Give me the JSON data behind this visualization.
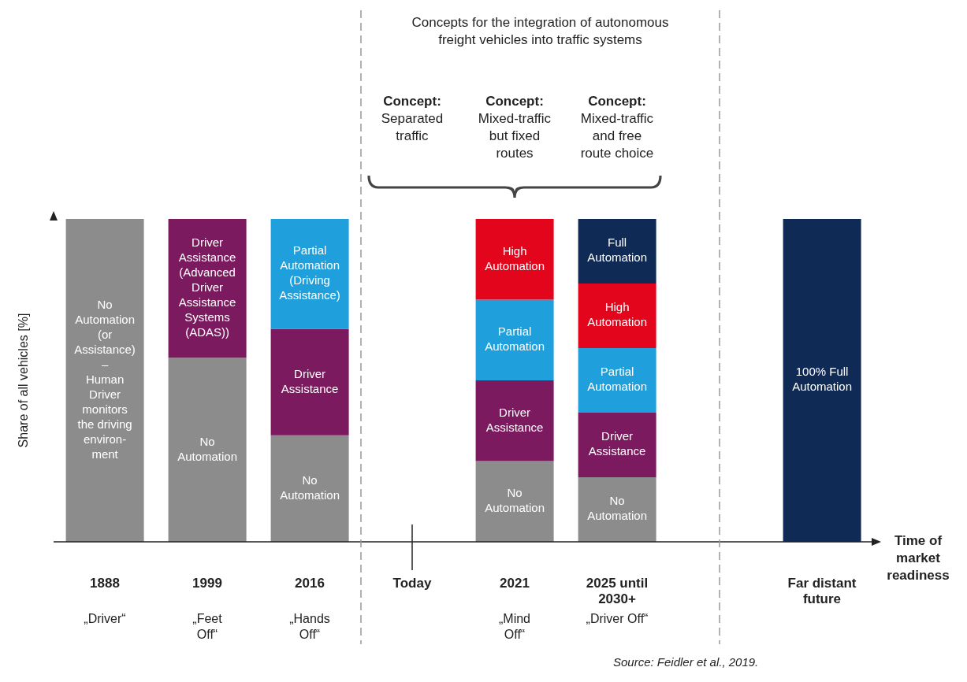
{
  "chart_data": {
    "type": "bar",
    "stacked": true,
    "ylim": [
      0,
      100
    ],
    "title": "Concepts for the integration of autonomous\nfreight vehicles into traffic systems",
    "ylabel": "Share of all vehicles [%]",
    "xlabel": "Time of\nmarket\nreadiness",
    "categories": [
      "1888\n„Driver“",
      "1999\n„Feet\nOff“",
      "2016\n„Hands\nOff“",
      "Today",
      "2021\n„Mind\nOff“",
      "2025 until\n2030+\n„Driver Off“",
      null,
      "Far distant\nfuture"
    ],
    "series": [
      {
        "color": "#8c8c8c",
        "values": [
          100,
          57,
          33,
          null,
          25,
          20,
          null,
          null
        ],
        "value_labels": [
          "No\nAutomation\n(or\nAssistance)\n–\nHuman\nDriver\nmonitors\nthe driving\nenviron-\nment",
          "No\nAutomation",
          "No\nAutomation",
          null,
          "No\nAutomation",
          "No\nAutomation",
          null,
          null
        ]
      },
      {
        "color": "#7b1a5e",
        "values": [
          null,
          43,
          33,
          null,
          25,
          20,
          null,
          null
        ],
        "value_labels": [
          null,
          "Driver\nAssistance\n(Advanced\nDriver\nAssistance\nSystems\n(ADAS))",
          "Driver\nAssistance",
          null,
          "Driver\nAssistance",
          "Driver\nAssistance",
          null,
          null
        ]
      },
      {
        "color": "#1fa0dc",
        "values": [
          null,
          null,
          34,
          null,
          25,
          20,
          null,
          null
        ],
        "value_labels": [
          null,
          null,
          "Partial\nAutomation\n(Driving\nAssistance)",
          null,
          "Partial\nAutomation",
          "Partial\nAutomation",
          null,
          null
        ]
      },
      {
        "color": "#e3051b",
        "values": [
          null,
          null,
          null,
          null,
          25,
          20,
          null,
          null
        ],
        "value_labels": [
          null,
          null,
          null,
          null,
          "High\nAutomation",
          "High\nAutomation",
          null,
          null
        ]
      },
      {
        "color": "#0f2a55",
        "values": [
          null,
          null,
          null,
          null,
          null,
          20,
          null,
          100
        ],
        "value_labels": [
          null,
          null,
          null,
          null,
          null,
          "Full\nAutomation",
          null,
          "100% Full\nAutomation"
        ]
      }
    ],
    "annotations": [
      "Concept:\nSeparated\ntraffic",
      "Concept:\nMixed-traffic\nbut fixed\nroutes",
      "Concept:\nMixed-traffic\nand free\nroute choice",
      "Source: Feidler et al., 2019."
    ]
  }
}
